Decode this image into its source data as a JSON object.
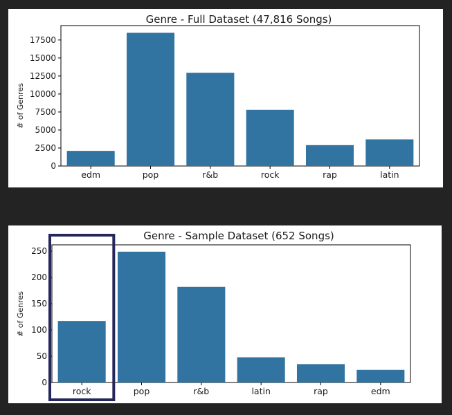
{
  "colors": {
    "bar": "#3274a1",
    "highlight": "#25275a",
    "background": "#232323"
  },
  "chart_data": [
    {
      "type": "bar",
      "title": "Genre - Full Dataset (47,816 Songs)",
      "xlabel": "",
      "ylabel": "# of Genres",
      "categories": [
        "edm",
        "pop",
        "r&b",
        "rock",
        "rap",
        "latin"
      ],
      "values": [
        2100,
        18500,
        12950,
        7800,
        2900,
        3700
      ],
      "ylim": [
        0,
        19500
      ],
      "yticks": [
        0,
        2500,
        5000,
        7500,
        10000,
        12500,
        15000,
        17500
      ],
      "grid": false
    },
    {
      "type": "bar",
      "title": "Genre - Sample Dataset (652 Songs)",
      "xlabel": "",
      "ylabel": "# of Genres",
      "categories": [
        "rock",
        "pop",
        "r&b",
        "latin",
        "rap",
        "edm"
      ],
      "values": [
        117,
        249,
        182,
        48,
        35,
        24
      ],
      "ylim": [
        0,
        262
      ],
      "yticks": [
        0,
        50,
        100,
        150,
        200,
        250
      ],
      "grid": false,
      "highlighted_category": "rock"
    }
  ]
}
